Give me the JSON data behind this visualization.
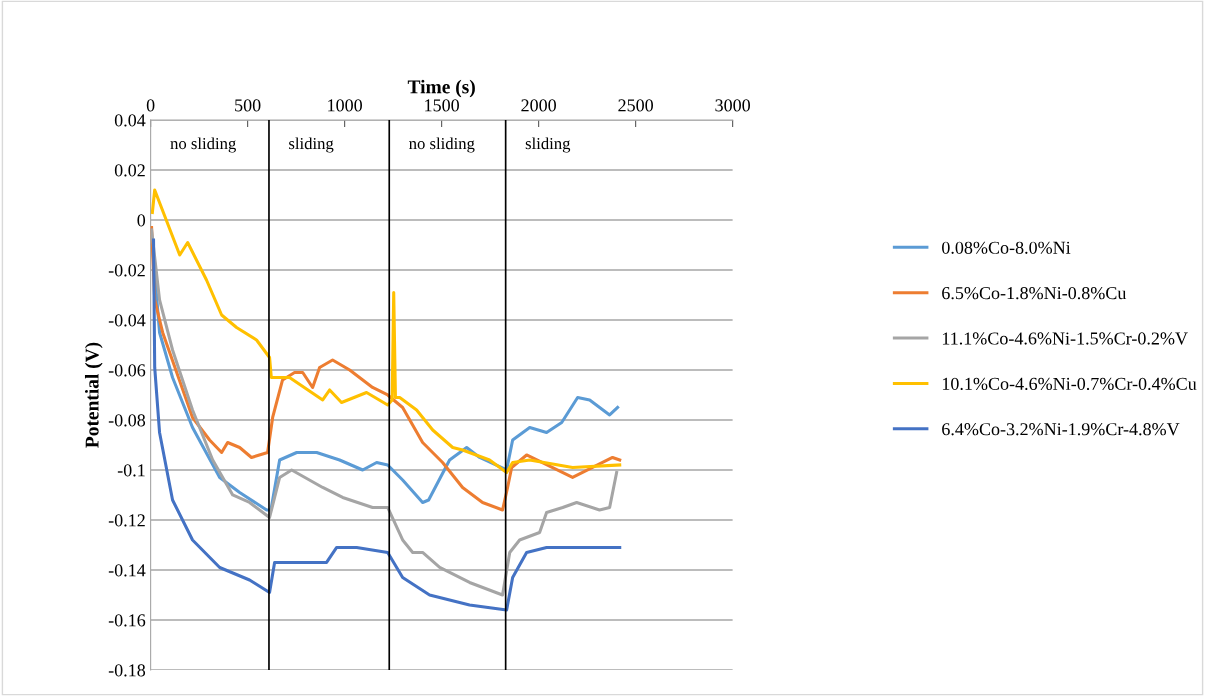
{
  "chart_data": {
    "type": "line",
    "xlabel": "Time (s)",
    "ylabel": "Potential (V)",
    "xlim": [
      0,
      3000
    ],
    "xticks": [
      0,
      500,
      1000,
      1500,
      2000,
      2500,
      3000
    ],
    "ylim": [
      -0.18,
      0.04
    ],
    "yticks": [
      {
        "value": -0.18,
        "label": "-0.18"
      },
      {
        "value": -0.16,
        "label": "-0.16"
      },
      {
        "value": -0.14,
        "label": "-0.14"
      },
      {
        "value": -0.12,
        "label": "-0.12"
      },
      {
        "value": -0.1,
        "label": "-0.1"
      },
      {
        "value": -0.08,
        "label": "-0.08"
      },
      {
        "value": -0.06,
        "label": "-0.06"
      },
      {
        "value": -0.04,
        "label": "-0.04"
      },
      {
        "value": -0.02,
        "label": "-0.02"
      },
      {
        "value": 0,
        "label": "0"
      },
      {
        "value": 0.02,
        "label": "0.02"
      },
      {
        "value": 0.04,
        "label": "0.04"
      }
    ],
    "grid": "y",
    "legend": "right",
    "marker": "none",
    "line_style": "solid",
    "ref_lines": [
      {
        "axis": "x",
        "value": 610,
        "color": "#000000"
      },
      {
        "axis": "x",
        "value": 1230,
        "color": "#000000"
      },
      {
        "axis": "x",
        "value": 1830,
        "color": "#000000"
      }
    ],
    "annotations": [
      "no sliding",
      "sliding",
      "no sliding",
      "sliding"
    ],
    "series": [
      {
        "name": "0.08%Co-8.0%Ni",
        "color": "#5b9bd5",
        "x": [
          9,
          46,
          113,
          216,
          356,
          459,
          598,
          620,
          665,
          753,
          856,
          974,
          1093,
          1165,
          1222,
          1299,
          1402,
          1433,
          1541,
          1629,
          1696,
          1835,
          1866,
          1954,
          2041,
          2119,
          2201,
          2263,
          2366,
          2407
        ],
        "values": [
          -0.01,
          -0.045,
          -0.063,
          -0.083,
          -0.103,
          -0.109,
          -0.116,
          -0.116,
          -0.096,
          -0.093,
          -0.093,
          -0.096,
          -0.1,
          -0.097,
          -0.098,
          -0.104,
          -0.113,
          -0.112,
          -0.096,
          -0.091,
          -0.095,
          -0.1,
          -0.088,
          -0.083,
          -0.085,
          -0.081,
          -0.071,
          -0.072,
          -0.078,
          -0.075
        ]
      },
      {
        "name": "6.5%Co-1.8%Ni-0.8%Cu",
        "color": "#ed7d31",
        "x": [
          5,
          21,
          62,
          216,
          304,
          366,
          397,
          459,
          520,
          603,
          629,
          680,
          742,
          784,
          835,
          871,
          938,
          1026,
          1144,
          1222,
          1299,
          1402,
          1505,
          1608,
          1711,
          1814,
          1840,
          1861,
          1938,
          2175,
          2381,
          2418
        ],
        "values": [
          -0.003,
          -0.032,
          -0.045,
          -0.079,
          -0.088,
          -0.093,
          -0.089,
          -0.091,
          -0.095,
          -0.093,
          -0.079,
          -0.064,
          -0.061,
          -0.061,
          -0.067,
          -0.059,
          -0.056,
          -0.06,
          -0.067,
          -0.07,
          -0.075,
          -0.089,
          -0.097,
          -0.107,
          -0.113,
          -0.116,
          -0.107,
          -0.099,
          -0.094,
          -0.103,
          -0.095,
          -0.096
        ]
      },
      {
        "name": "11.1%Co-4.6%Ni-1.5%Cr-0.2%V",
        "color": "#a5a5a5",
        "x": [
          5,
          46,
          113,
          216,
          320,
          423,
          510,
          613,
          665,
          727,
          887,
          990,
          1144,
          1222,
          1299,
          1351,
          1402,
          1490,
          1644,
          1814,
          1851,
          1902,
          2005,
          2041,
          2124,
          2196,
          2314,
          2366,
          2402
        ],
        "values": [
          -0.004,
          -0.032,
          -0.052,
          -0.076,
          -0.096,
          -0.11,
          -0.113,
          -0.119,
          -0.103,
          -0.1,
          -0.107,
          -0.111,
          -0.115,
          -0.115,
          -0.128,
          -0.133,
          -0.133,
          -0.139,
          -0.145,
          -0.15,
          -0.133,
          -0.128,
          -0.125,
          -0.117,
          -0.115,
          -0.113,
          -0.116,
          -0.115,
          -0.101
        ]
      },
      {
        "name": "10.1%Co-4.6%Ni-0.7%Cr-0.4%Cu",
        "color": "#ffc000",
        "x": [
          9,
          21,
          150,
          191,
          288,
          366,
          443,
          546,
          613,
          622,
          716,
          887,
          923,
          984,
          1113,
          1222,
          1245,
          1253,
          1262,
          1284,
          1371,
          1454,
          1557,
          1608,
          1747,
          1835,
          1866,
          1954,
          2175,
          2418
        ],
        "values": [
          0.003,
          0.012,
          -0.014,
          -0.009,
          -0.024,
          -0.038,
          -0.043,
          -0.048,
          -0.055,
          -0.063,
          -0.063,
          -0.072,
          -0.068,
          -0.073,
          -0.069,
          -0.074,
          -0.072,
          -0.029,
          -0.071,
          -0.071,
          -0.076,
          -0.084,
          -0.091,
          -0.092,
          -0.096,
          -0.101,
          -0.097,
          -0.096,
          -0.099,
          -0.098
        ]
      },
      {
        "name": "6.4%Co-3.2%Ni-1.9%Cr-4.8%V",
        "color": "#4472c4",
        "x": [
          15,
          21,
          46,
          113,
          216,
          356,
          510,
          613,
          639,
          716,
          907,
          959,
          1062,
          1222,
          1299,
          1438,
          1644,
          1835,
          1866,
          1938,
          2041,
          2418
        ],
        "values": [
          -0.008,
          -0.059,
          -0.085,
          -0.112,
          -0.128,
          -0.139,
          -0.144,
          -0.149,
          -0.137,
          -0.137,
          -0.137,
          -0.131,
          -0.131,
          -0.133,
          -0.143,
          -0.15,
          -0.154,
          -0.156,
          -0.143,
          -0.133,
          -0.131,
          -0.131
        ]
      }
    ]
  }
}
